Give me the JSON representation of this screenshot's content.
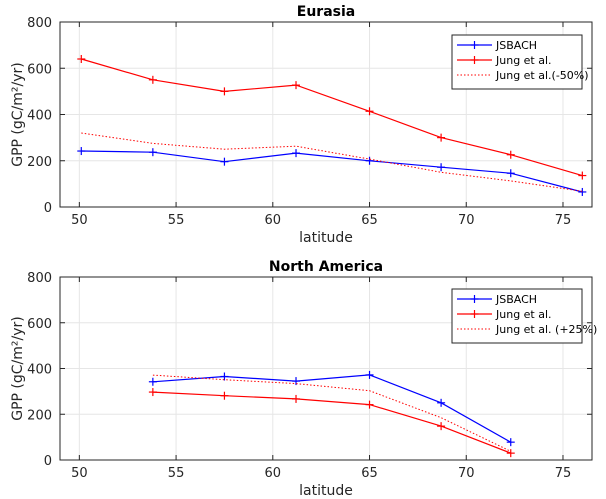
{
  "chart_data": [
    {
      "type": "line",
      "title": "Eurasia",
      "xlabel": "latitude",
      "ylabel": "GPP (gC/m²/yr)",
      "xlim": [
        49,
        76.5
      ],
      "ylim": [
        0,
        800
      ],
      "xticks": [
        50,
        55,
        60,
        65,
        70,
        75
      ],
      "yticks": [
        0,
        200,
        400,
        600,
        800
      ],
      "grid": true,
      "legend_position": "top-right",
      "x": [
        50.1,
        53.8,
        57.5,
        61.2,
        65.0,
        68.7,
        72.3,
        76.0
      ],
      "series": [
        {
          "name": "JSBACH",
          "color": "#0000ff",
          "style": "solid",
          "marker": "+",
          "values": [
            242,
            237,
            196,
            233,
            200,
            172,
            146,
            65
          ]
        },
        {
          "name": "Jung et al.",
          "color": "#ff0000",
          "style": "solid",
          "marker": "+",
          "values": [
            640,
            550,
            500,
            527,
            414,
            300,
            226,
            136
          ]
        },
        {
          "name": "Jung et al.(-50%)",
          "color": "#ff0000",
          "style": "dotted",
          "marker": "",
          "values": [
            320,
            275,
            250,
            263,
            207,
            150,
            113,
            68
          ]
        }
      ]
    },
    {
      "type": "line",
      "title": "North America",
      "xlabel": "latitude",
      "ylabel": "GPP (gC/m²/yr)",
      "xlim": [
        49,
        76.5
      ],
      "ylim": [
        0,
        800
      ],
      "xticks": [
        50,
        55,
        60,
        65,
        70,
        75
      ],
      "yticks": [
        0,
        200,
        400,
        600,
        800
      ],
      "grid": true,
      "legend_position": "top-right",
      "x": [
        53.8,
        57.5,
        61.2,
        65.0,
        68.7,
        72.3
      ],
      "series": [
        {
          "name": "JSBACH",
          "color": "#0000ff",
          "style": "solid",
          "marker": "+",
          "values": [
            342,
            365,
            345,
            372,
            250,
            78
          ]
        },
        {
          "name": "Jung et al.",
          "color": "#ff0000",
          "style": "solid",
          "marker": "+",
          "values": [
            297,
            281,
            267,
            242,
            148,
            30
          ]
        },
        {
          "name": "Jung et al. (+25%)",
          "color": "#ff0000",
          "style": "dotted",
          "marker": "",
          "values": [
            371,
            351,
            334,
            303,
            185,
            38
          ]
        }
      ]
    }
  ]
}
